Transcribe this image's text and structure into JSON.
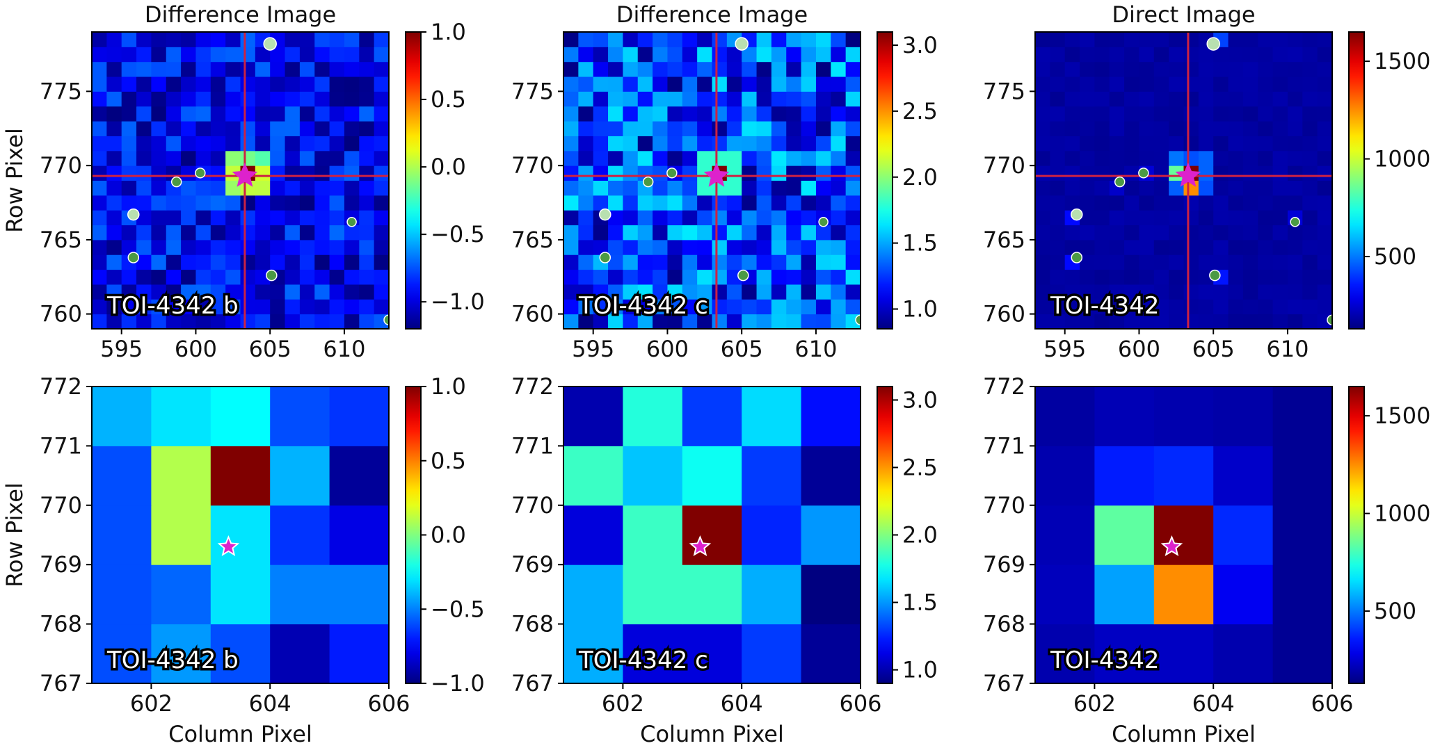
{
  "figure": {
    "colormap": "jet",
    "crosshair_color": "#cc2244",
    "star_color": "#dd22cc",
    "top_row_ylabel": "Row Pixel",
    "bottom_row_ylabel": "Row Pixel",
    "xlabel": "Column Pixel"
  },
  "chart_data": [
    {
      "type": "heatmap",
      "title": "Difference Image",
      "label": "TOI-4342 b",
      "xlabel": "",
      "ylabel": "Row Pixel",
      "xlim": [
        593,
        613
      ],
      "ylim": [
        759,
        779
      ],
      "xticks": [
        595,
        600,
        605,
        610
      ],
      "yticks": [
        760,
        765,
        770,
        775
      ],
      "colorbar": {
        "ticks": [
          -1.0,
          -0.5,
          0.0,
          0.5,
          1.0
        ],
        "tick_labels": [
          "−1.0",
          "−0.5",
          "0.0",
          "0.5",
          "1.0"
        ],
        "vmin": -1.2,
        "vmax": 1.0
      },
      "pixel_size": 1,
      "field": "b",
      "crosshair": [
        603.3,
        769.3
      ],
      "star": [
        603.3,
        769.3
      ],
      "neighbors": [
        [
          605.0,
          778.2,
          1.0
        ],
        [
          600.3,
          769.5,
          0.6
        ],
        [
          598.7,
          768.9,
          0.6
        ],
        [
          595.8,
          766.7,
          0.8
        ],
        [
          610.5,
          766.2,
          0.5
        ],
        [
          595.8,
          763.8,
          0.7
        ],
        [
          605.1,
          762.6,
          0.7
        ],
        [
          613.0,
          759.6,
          0.6
        ]
      ]
    },
    {
      "type": "heatmap",
      "title": "Difference Image",
      "label": "TOI-4342 c",
      "xlabel": "",
      "ylabel": "",
      "xlim": [
        593,
        613
      ],
      "ylim": [
        759,
        779
      ],
      "xticks": [
        595,
        600,
        605,
        610
      ],
      "yticks": [
        760,
        765,
        770,
        775
      ],
      "colorbar": {
        "ticks": [
          1.0,
          1.5,
          2.0,
          2.5,
          3.0
        ],
        "tick_labels": [
          "1.0",
          "1.5",
          "2.0",
          "2.5",
          "3.0"
        ],
        "vmin": 0.85,
        "vmax": 3.1
      },
      "pixel_size": 1,
      "field": "c",
      "crosshair": [
        603.3,
        769.3
      ],
      "star": [
        603.3,
        769.3
      ],
      "neighbors": [
        [
          605.0,
          778.2,
          1.0
        ],
        [
          600.3,
          769.5,
          0.6
        ],
        [
          598.7,
          768.9,
          0.6
        ],
        [
          595.8,
          766.7,
          0.8
        ],
        [
          610.5,
          766.2,
          0.5
        ],
        [
          595.8,
          763.8,
          0.7
        ],
        [
          605.1,
          762.6,
          0.7
        ],
        [
          613.0,
          759.6,
          0.6
        ]
      ]
    },
    {
      "type": "heatmap",
      "title": "Direct Image",
      "label": "TOI-4342",
      "xlabel": "",
      "ylabel": "",
      "xlim": [
        593,
        613
      ],
      "ylim": [
        759,
        779
      ],
      "xticks": [
        595,
        600,
        605,
        610
      ],
      "yticks": [
        760,
        765,
        770,
        775
      ],
      "colorbar": {
        "ticks": [
          500,
          1000,
          1500
        ],
        "tick_labels": [
          "500",
          "1000",
          "1500"
        ],
        "vmin": 130,
        "vmax": 1650
      },
      "pixel_size": 1,
      "field": "direct",
      "crosshair": [
        603.3,
        769.3
      ],
      "star": [
        603.3,
        769.3
      ],
      "neighbors": [
        [
          605.0,
          778.2,
          1.0
        ],
        [
          600.3,
          769.5,
          0.6
        ],
        [
          598.7,
          768.9,
          0.6
        ],
        [
          595.8,
          766.7,
          0.8
        ],
        [
          610.5,
          766.2,
          0.5
        ],
        [
          595.8,
          763.8,
          0.7
        ],
        [
          605.1,
          762.6,
          0.7
        ],
        [
          613.0,
          759.6,
          0.6
        ]
      ]
    },
    {
      "type": "heatmap",
      "title": "",
      "label": "TOI-4342 b",
      "xlabel": "Column Pixel",
      "ylabel": "Row Pixel",
      "xlim": [
        601,
        606
      ],
      "ylim": [
        767,
        772
      ],
      "xticks": [
        602,
        604,
        606
      ],
      "yticks": [
        767,
        768,
        769,
        770,
        771,
        772
      ],
      "colorbar": {
        "ticks": [
          -1.0,
          -0.5,
          0.0,
          0.5,
          1.0
        ],
        "tick_labels": [
          "−1.0",
          "−0.5",
          "0.0",
          "0.5",
          "1.0"
        ],
        "vmin": -1.0,
        "vmax": 1.0
      },
      "star": [
        603.3,
        769.3
      ],
      "grid_origin": [
        601,
        767
      ],
      "grid": [
        [
          -0.6,
          -0.45,
          -0.6,
          -0.9,
          -0.7
        ],
        [
          -0.6,
          -0.55,
          -0.3,
          -0.5,
          -0.5
        ],
        [
          -0.6,
          0.1,
          -0.3,
          -0.65,
          -0.8
        ],
        [
          -0.6,
          0.1,
          1.0,
          -0.4,
          -0.95
        ],
        [
          -0.4,
          -0.3,
          -0.25,
          -0.6,
          -0.65
        ]
      ]
    },
    {
      "type": "heatmap",
      "title": "",
      "label": "TOI-4342 c",
      "xlabel": "Column Pixel",
      "ylabel": "",
      "xlim": [
        601,
        606
      ],
      "ylim": [
        767,
        772
      ],
      "xticks": [
        602,
        604,
        606
      ],
      "yticks": [
        767,
        768,
        769,
        770,
        771,
        772
      ],
      "colorbar": {
        "ticks": [
          1.0,
          1.5,
          2.0,
          2.5,
          3.0
        ],
        "tick_labels": [
          "1.0",
          "1.5",
          "2.0",
          "2.5",
          "3.0"
        ],
        "vmin": 0.9,
        "vmax": 3.1
      },
      "star": [
        603.3,
        769.3
      ],
      "grid_origin": [
        601,
        767
      ],
      "grid": [
        [
          1.55,
          1.1,
          1.1,
          1.3,
          0.95
        ],
        [
          1.55,
          1.85,
          1.85,
          1.55,
          0.9
        ],
        [
          1.1,
          1.85,
          3.1,
          1.25,
          1.5
        ],
        [
          1.85,
          1.6,
          1.75,
          1.3,
          0.95
        ],
        [
          1.0,
          1.8,
          1.3,
          1.65,
          1.2
        ]
      ]
    },
    {
      "type": "heatmap",
      "title": "",
      "label": "TOI-4342",
      "xlabel": "Column Pixel",
      "ylabel": "",
      "xlim": [
        601,
        606
      ],
      "ylim": [
        767,
        772
      ],
      "xticks": [
        602,
        604,
        606
      ],
      "yticks": [
        767,
        768,
        769,
        770,
        771,
        772
      ],
      "colorbar": {
        "ticks": [
          500,
          1000,
          1500
        ],
        "tick_labels": [
          "500",
          "1000",
          "1500"
        ],
        "vmin": 130,
        "vmax": 1650
      },
      "star": [
        603.3,
        769.3
      ],
      "grid_origin": [
        601,
        767
      ],
      "grid": [
        [
          200,
          230,
          230,
          200,
          160
        ],
        [
          220,
          560,
          1250,
          300,
          160
        ],
        [
          210,
          840,
          1650,
          380,
          160
        ],
        [
          200,
          360,
          380,
          240,
          160
        ],
        [
          180,
          210,
          200,
          190,
          160
        ]
      ]
    }
  ]
}
